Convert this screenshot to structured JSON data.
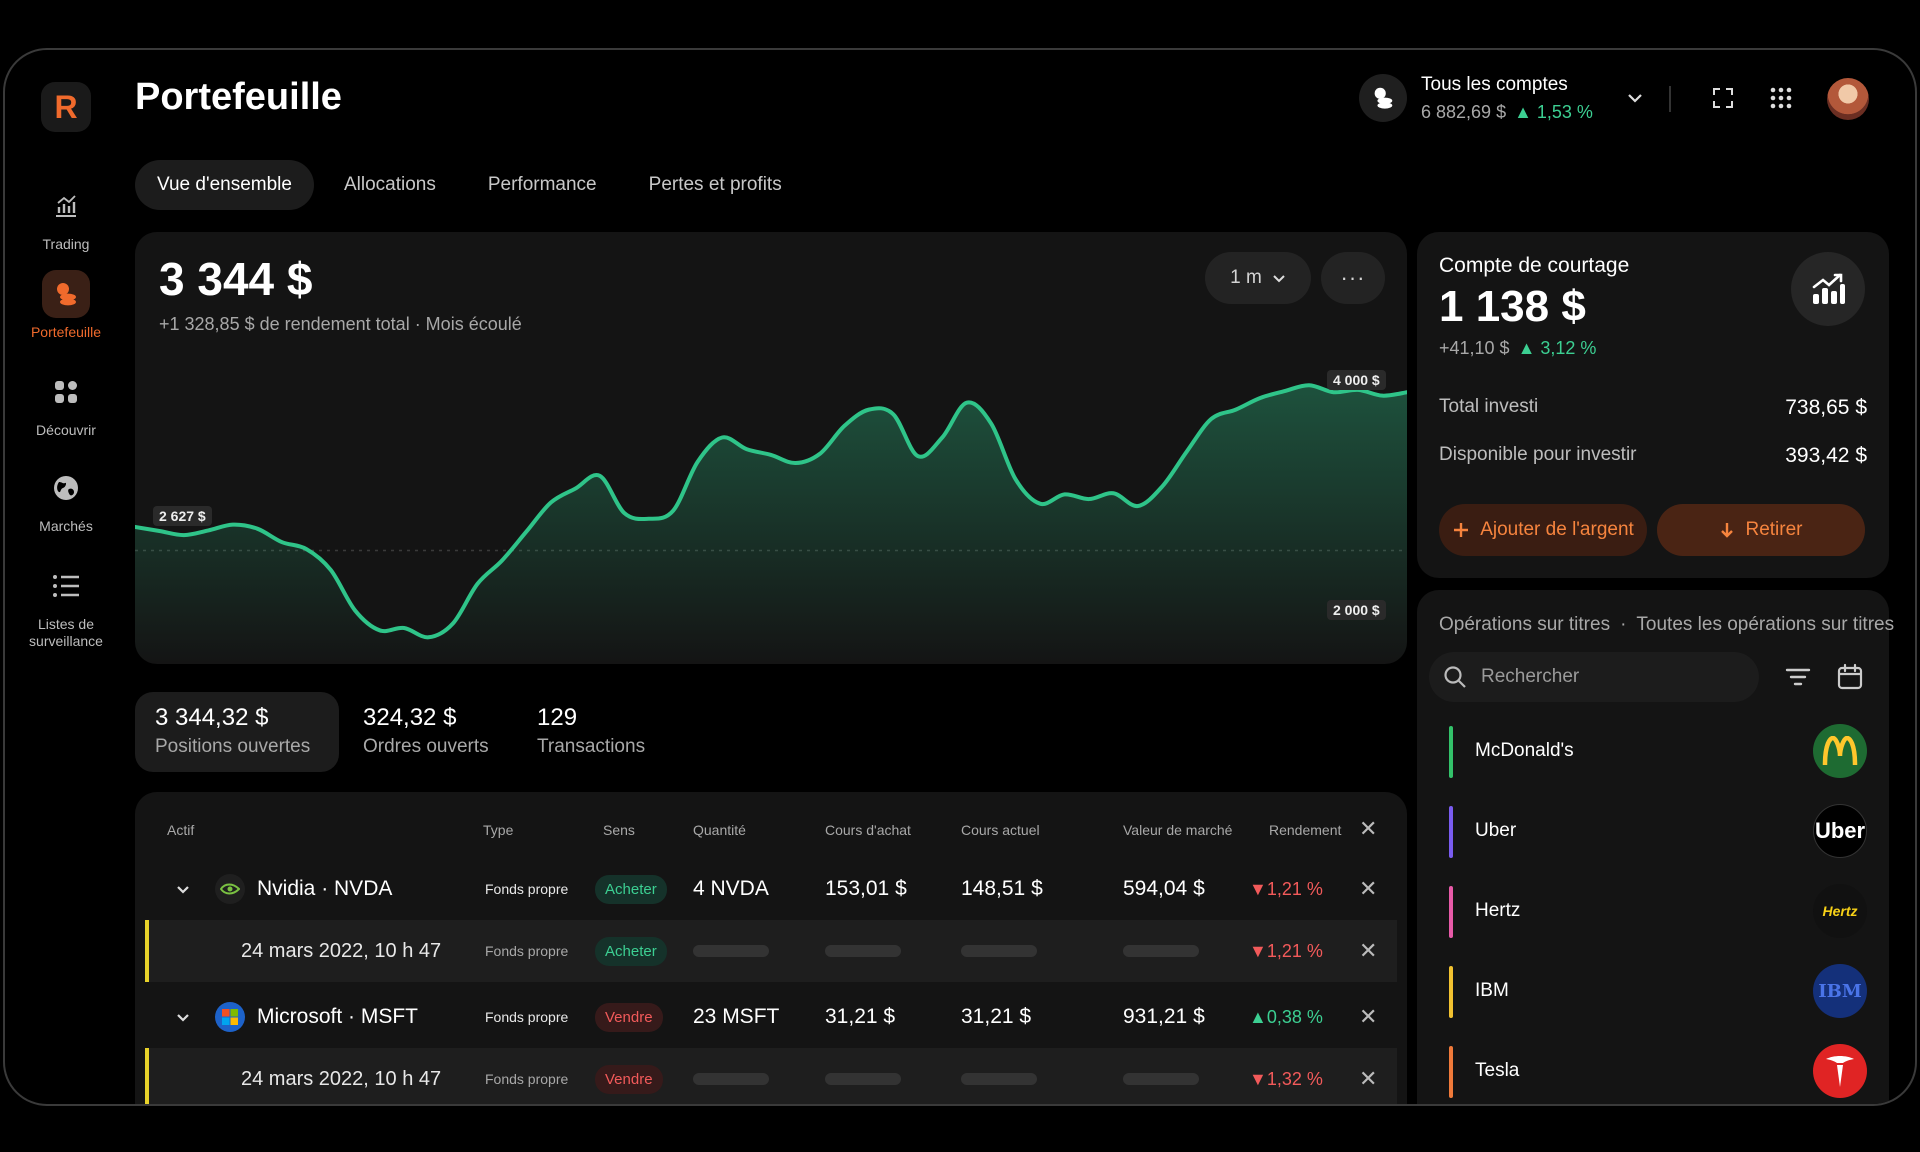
{
  "app": {
    "title": "Portefeuille",
    "logo_letter": "R"
  },
  "sidebar": {
    "items": [
      {
        "label": "Trading",
        "icon": "chart-bars-icon",
        "active": false
      },
      {
        "label": "Portefeuille",
        "icon": "coins-icon",
        "active": true
      },
      {
        "label": "Découvrir",
        "icon": "grid-icon",
        "active": false
      },
      {
        "label": "Marchés",
        "icon": "globe-icon",
        "active": false
      },
      {
        "label": "Listes de surveillance",
        "icon": "list-icon",
        "active": false
      }
    ]
  },
  "header": {
    "account_name": "Tous les comptes",
    "account_value": "6 882,69 $",
    "account_change": "▲ 1,53 %"
  },
  "tabs": [
    {
      "label": "Vue d'ensemble",
      "active": true
    },
    {
      "label": "Allocations",
      "active": false
    },
    {
      "label": "Performance",
      "active": false
    },
    {
      "label": "Pertes et profits",
      "active": false
    }
  ],
  "overview": {
    "value": "3 344 $",
    "subtitle": "+1 328,85 $ de rendement total · Mois écoulé",
    "period": "1 m",
    "more": "···"
  },
  "chart_data": {
    "type": "area",
    "series": [
      {
        "values": [
          2830,
          2795,
          2760,
          2800,
          2850,
          2815,
          2700,
          2640,
          2460,
          2110,
          1940,
          1960,
          1880,
          2000,
          2340,
          2540,
          2790,
          3040,
          3160,
          3270,
          2950,
          2900,
          2970,
          3390,
          3600,
          3500,
          3450,
          3380,
          3460,
          3700,
          3840,
          3800,
          3440,
          3600,
          3900,
          3720,
          3240,
          3030,
          3110,
          3070,
          3120,
          3010,
          3180,
          3480,
          3760,
          3840,
          3940,
          4000,
          4050,
          3990,
          4010,
          3960,
          3990
        ]
      }
    ],
    "y_labels": {
      "top": "4 000 $",
      "baseline": "2 627 $",
      "bottom": "2 000 $"
    },
    "ylim": [
      1650,
      4250
    ],
    "baseline": 2627,
    "grid": false
  },
  "stats": [
    {
      "value": "3 344,32 $",
      "label": "Positions ouvertes",
      "active": true
    },
    {
      "value": "324,32 $",
      "label": "Ordres ouverts",
      "active": false
    },
    {
      "value": "129",
      "label": "Transactions",
      "active": false
    }
  ],
  "table": {
    "headers": [
      "Actif",
      "Type",
      "Sens",
      "Quantité",
      "Cours d'achat",
      "Cours actuel",
      "Valeur de marché",
      "Rendement"
    ],
    "header_close": "✕",
    "rows": [
      {
        "asset": "Nvidia · NVDA",
        "type": "Fonds propre",
        "side": "Acheter",
        "side_kind": "buy",
        "qty": "4 NVDA",
        "buy": "153,01 $",
        "cur": "148,51 $",
        "mkt": "594,04 $",
        "ret": "▼1,21 %",
        "ret_kind": "dn",
        "close": "✕"
      },
      {
        "date": "24 mars 2022, 10 h 47",
        "type": "Fonds propre",
        "side": "Acheter",
        "side_kind": "buy",
        "ret": "▼1,21 %",
        "ret_kind": "dn",
        "close": "✕"
      },
      {
        "asset": "Microsoft · MSFT",
        "type": "Fonds propre",
        "side": "Vendre",
        "side_kind": "sell",
        "qty": "23 MSFT",
        "buy": "31,21 $",
        "cur": "31,21 $",
        "mkt": "931,21 $",
        "ret": "▲0,38 %",
        "ret_kind": "up",
        "close": "✕"
      },
      {
        "date": "24 mars 2022, 10 h 47",
        "type": "Fonds propre",
        "side": "Vendre",
        "side_kind": "sell",
        "ret": "▼1,32 %",
        "ret_kind": "dn",
        "close": "✕"
      }
    ]
  },
  "brokerage": {
    "title": "Compte de courtage",
    "value": "1 138 $",
    "change_abs": "+41,10 $",
    "change_pct": "▲ 3,12 %",
    "total_label": "Total investi",
    "total_value": "738,65 $",
    "avail_label": "Disponible pour investir",
    "avail_value": "393,42 $",
    "add_label": "Ajouter de l'argent",
    "withdraw_label": "Retirer"
  },
  "operations": {
    "title": "Opérations sur titres",
    "separator": "·",
    "all_label": "Toutes les opérations sur titres",
    "search_placeholder": "Rechercher",
    "items": [
      {
        "name": "McDonald's",
        "color": "#33c26a",
        "logo_text": "M",
        "logo_bg": "#1e6b32",
        "logo_fg": "#ffc72c"
      },
      {
        "name": "Uber",
        "color": "#7a5cf0",
        "logo_text": "Uber",
        "logo_bg": "#000000",
        "logo_fg": "#ffffff"
      },
      {
        "name": "Hertz",
        "color": "#e85aa8",
        "logo_text": "Hertz",
        "logo_bg": "#111111",
        "logo_fg": "#f7d117"
      },
      {
        "name": "IBM",
        "color": "#f2c230",
        "logo_text": "IBM",
        "logo_bg": "#14307a",
        "logo_fg": "#4a74e8"
      },
      {
        "name": "Tesla",
        "color": "#f07a3a",
        "logo_text": "T",
        "logo_bg": "#e02424",
        "logo_fg": "#ffffff"
      }
    ]
  }
}
